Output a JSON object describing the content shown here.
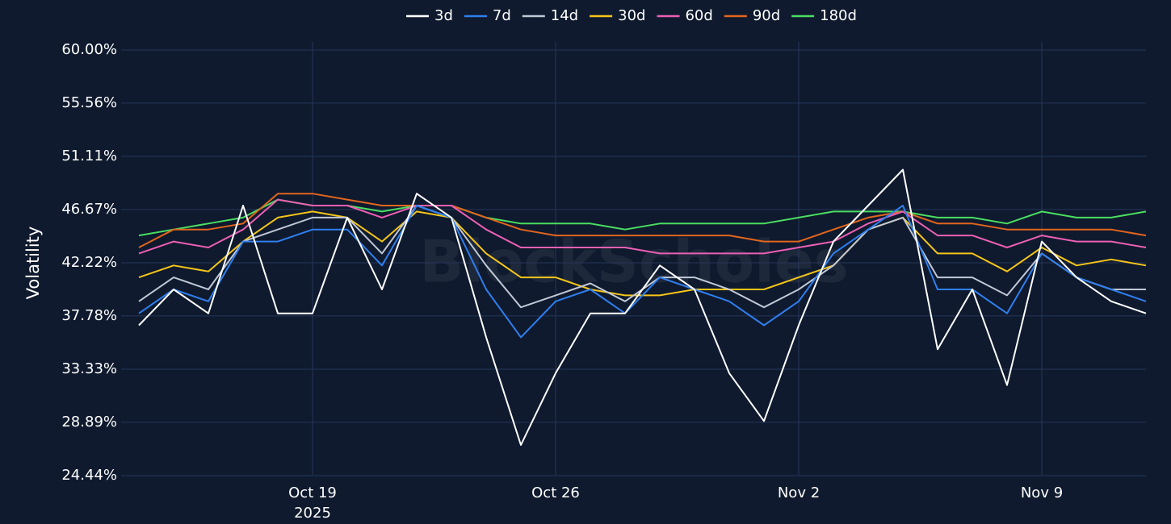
{
  "chart_data": {
    "type": "line",
    "ylabel": "Volatility",
    "watermark": "BlockScholes",
    "legend": "top",
    "grid": true,
    "x": [
      "2025-10-14",
      "2025-10-15",
      "2025-10-16",
      "2025-10-17",
      "2025-10-18",
      "2025-10-19",
      "2025-10-20",
      "2025-10-21",
      "2025-10-22",
      "2025-10-23",
      "2025-10-24",
      "2025-10-25",
      "2025-10-26",
      "2025-10-27",
      "2025-10-28",
      "2025-10-29",
      "2025-10-30",
      "2025-10-31",
      "2025-11-01",
      "2025-11-02",
      "2025-11-03",
      "2025-11-04",
      "2025-11-05",
      "2025-11-06",
      "2025-11-07",
      "2025-11-08",
      "2025-11-09",
      "2025-11-10",
      "2025-11-11",
      "2025-11-12"
    ],
    "xlim": [
      "2025-10-14",
      "2025-11-12"
    ],
    "xticks": [
      {
        "value": "2025-10-19",
        "label": "Oct 19"
      },
      {
        "value": "2025-10-26",
        "label": "Oct 26"
      },
      {
        "value": "2025-11-02",
        "label": "Nov 2"
      },
      {
        "value": "2025-11-09",
        "label": "Nov 9"
      }
    ],
    "xtick_year": "2025",
    "ylim": [
      24.44,
      60
    ],
    "yticks": [
      {
        "value": 24.44,
        "label": "24.44%"
      },
      {
        "value": 28.89,
        "label": "28.89%"
      },
      {
        "value": 33.33,
        "label": "33.33%"
      },
      {
        "value": 37.78,
        "label": "37.78%"
      },
      {
        "value": 42.22,
        "label": "42.22%"
      },
      {
        "value": 46.67,
        "label": "46.67%"
      },
      {
        "value": 51.11,
        "label": "51.11%"
      },
      {
        "value": 55.56,
        "label": "55.56%"
      },
      {
        "value": 60,
        "label": "60.00%"
      }
    ],
    "series": [
      {
        "name": "3d",
        "color": "#ffffff",
        "values": [
          37,
          40,
          38,
          47,
          38,
          38,
          46,
          40,
          48,
          46,
          36,
          27,
          33,
          38,
          38,
          42,
          40,
          33,
          29,
          37,
          44,
          47,
          50,
          35,
          40,
          32,
          44,
          41,
          39,
          38
        ]
      },
      {
        "name": "7d",
        "color": "#2f7fef",
        "values": [
          38,
          40,
          39,
          44,
          44,
          45,
          45,
          42,
          47,
          46,
          40,
          36,
          39,
          40,
          38,
          41,
          40,
          39,
          37,
          39,
          43,
          45,
          47,
          40,
          40,
          38,
          43,
          41,
          40,
          39
        ]
      },
      {
        "name": "14d",
        "color": "#c0c8d6",
        "values": [
          39,
          41,
          40,
          44,
          45,
          46,
          46,
          43,
          47,
          46,
          42,
          38.5,
          39.5,
          40.5,
          39,
          41,
          41,
          40,
          38.5,
          40,
          42,
          45,
          46,
          41,
          41,
          39.5,
          43,
          41,
          40,
          40
        ]
      },
      {
        "name": "30d",
        "color": "#f5c518",
        "values": [
          41,
          42,
          41.5,
          44,
          46,
          46.5,
          46,
          44,
          46.5,
          46,
          43,
          41,
          41,
          40,
          39.5,
          39.5,
          40,
          40,
          40,
          41,
          42,
          45,
          46,
          43,
          43,
          41.5,
          43.5,
          42,
          42.5,
          42
        ]
      },
      {
        "name": "60d",
        "color": "#ec5fb3",
        "values": [
          43,
          44,
          43.5,
          45,
          47.5,
          47,
          47,
          46,
          47,
          47,
          45,
          43.5,
          43.5,
          43.5,
          43.5,
          43,
          43,
          43,
          43,
          43.5,
          44,
          45.5,
          46.5,
          44.5,
          44.5,
          43.5,
          44.5,
          44,
          44,
          43.5
        ]
      },
      {
        "name": "90d",
        "color": "#e3651d",
        "values": [
          43.5,
          45,
          45,
          45.5,
          48,
          48,
          47.5,
          47,
          47,
          47,
          46,
          45,
          44.5,
          44.5,
          44.5,
          44.5,
          44.5,
          44.5,
          44,
          44,
          45,
          46,
          46.5,
          45.5,
          45.5,
          45,
          45,
          45,
          45,
          44.5
        ]
      },
      {
        "name": "180d",
        "color": "#4ade60",
        "values": [
          44.5,
          45,
          45.5,
          46,
          47.5,
          47,
          47,
          46.5,
          47,
          47,
          46,
          45.5,
          45.5,
          45.5,
          45,
          45.5,
          45.5,
          45.5,
          45.5,
          46,
          46.5,
          46.5,
          46.5,
          46,
          46,
          45.5,
          46.5,
          46,
          46,
          46.5
        ]
      }
    ]
  }
}
